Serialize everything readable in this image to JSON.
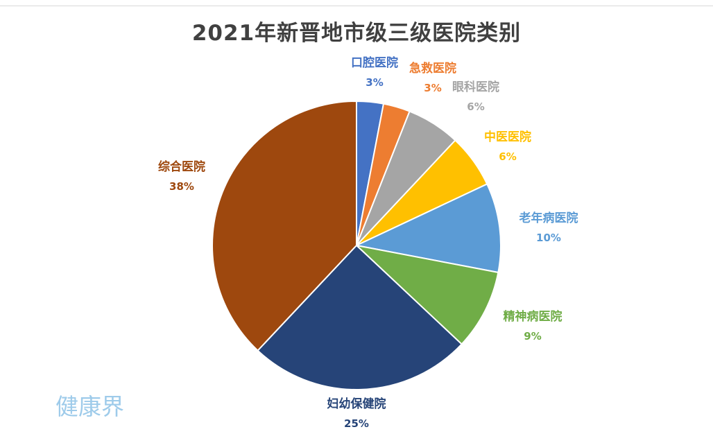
{
  "chart_data": {
    "type": "pie",
    "title": "2021年新晋地市级三级医院类别",
    "slices": [
      {
        "label": "口腔医院",
        "value": 3,
        "value_label": "3%",
        "color": "#4472c4"
      },
      {
        "label": "急救医院",
        "value": 3,
        "value_label": "3%",
        "color": "#ed7d31"
      },
      {
        "label": "眼科医院",
        "value": 6,
        "value_label": "6%",
        "color": "#a5a5a5"
      },
      {
        "label": "中医医院",
        "value": 6,
        "value_label": "6%",
        "color": "#ffc000"
      },
      {
        "label": "老年病医院",
        "value": 10,
        "value_label": "10%",
        "color": "#5b9bd5"
      },
      {
        "label": "精神病医院",
        "value": 9,
        "value_label": "9%",
        "color": "#70ad47"
      },
      {
        "label": "妇幼保健院",
        "value": 25,
        "value_label": "25%",
        "color": "#264478"
      },
      {
        "label": "综合医院",
        "value": 38,
        "value_label": "38%",
        "color": "#9e480e"
      }
    ],
    "start_angle": "12 o'clock",
    "direction": "clockwise"
  },
  "watermark": "健康界"
}
